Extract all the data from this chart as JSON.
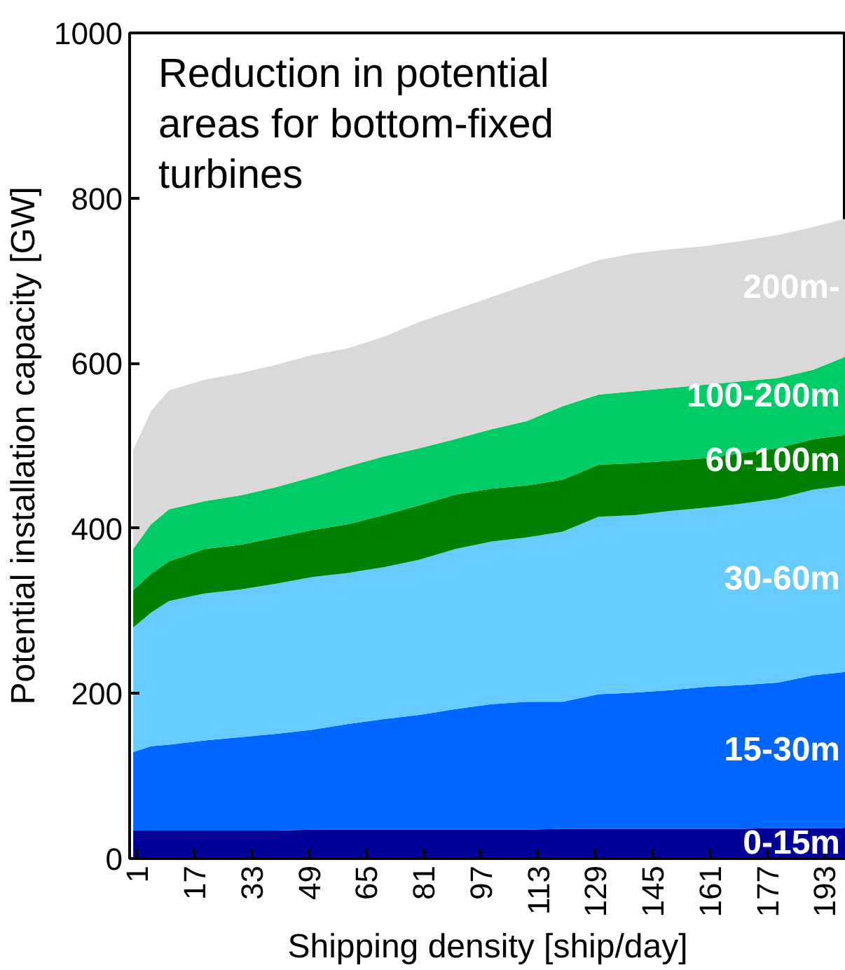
{
  "chart_data": {
    "type": "area",
    "stacked": true,
    "x": [
      0,
      5,
      10,
      20,
      30,
      40,
      50,
      60,
      70,
      80,
      90,
      100,
      110,
      120,
      130,
      140,
      150,
      160,
      170,
      180,
      190,
      199
    ],
    "xlim": [
      -1,
      199
    ],
    "xticks": [
      1,
      17,
      33,
      49,
      65,
      81,
      97,
      113,
      129,
      145,
      161,
      177,
      193
    ],
    "ylim": [
      0,
      1000
    ],
    "yticks": [
      0,
      200,
      400,
      600,
      800,
      1000
    ],
    "xlabel": "Shipping density [ship/day]",
    "ylabel": "Potential installation capacity [GW]",
    "annotations": [
      "Reduction in potential areas for bottom-fixed turbines"
    ],
    "grid": false,
    "series": [
      {
        "name": "0-15m",
        "color": "#000099",
        "values": [
          34,
          34,
          34,
          34,
          34,
          34,
          35,
          35,
          35,
          35,
          35,
          35,
          35,
          36,
          36,
          36,
          36,
          36,
          36,
          37,
          37,
          37
        ]
      },
      {
        "name": "15-30m",
        "color": "#0066ff",
        "values": [
          95,
          102,
          104,
          109,
          113,
          117,
          121,
          128,
          134,
          139,
          146,
          152,
          155,
          154,
          163,
          165,
          168,
          172,
          174,
          176,
          185,
          189
        ]
      },
      {
        "name": "30-60m",
        "color": "#66ccff",
        "values": [
          151,
          162,
          174,
          178,
          179,
          182,
          185,
          183,
          184,
          188,
          194,
          197,
          199,
          206,
          215,
          215,
          217,
          217,
          220,
          223,
          225,
          226
        ]
      },
      {
        "name": "60-100m",
        "color": "#008000",
        "values": [
          45,
          47,
          48,
          54,
          54,
          56,
          57,
          59,
          63,
          66,
          66,
          64,
          63,
          63,
          63,
          63,
          61,
          60,
          61,
          61,
          61,
          61
        ]
      },
      {
        "name": "100-200m",
        "color": "#00cc66",
        "values": [
          50,
          60,
          63,
          58,
          60,
          61,
          64,
          70,
          71,
          69,
          67,
          72,
          78,
          89,
          85,
          87,
          88,
          89,
          87,
          85,
          84,
          95
        ]
      },
      {
        "name": "200m-",
        "color": "#d9d9d9",
        "values": [
          120,
          137,
          144,
          147,
          148,
          148,
          148,
          143,
          145,
          153,
          157,
          160,
          165,
          162,
          163,
          167,
          168,
          168,
          170,
          173,
          173,
          167
        ]
      }
    ]
  }
}
